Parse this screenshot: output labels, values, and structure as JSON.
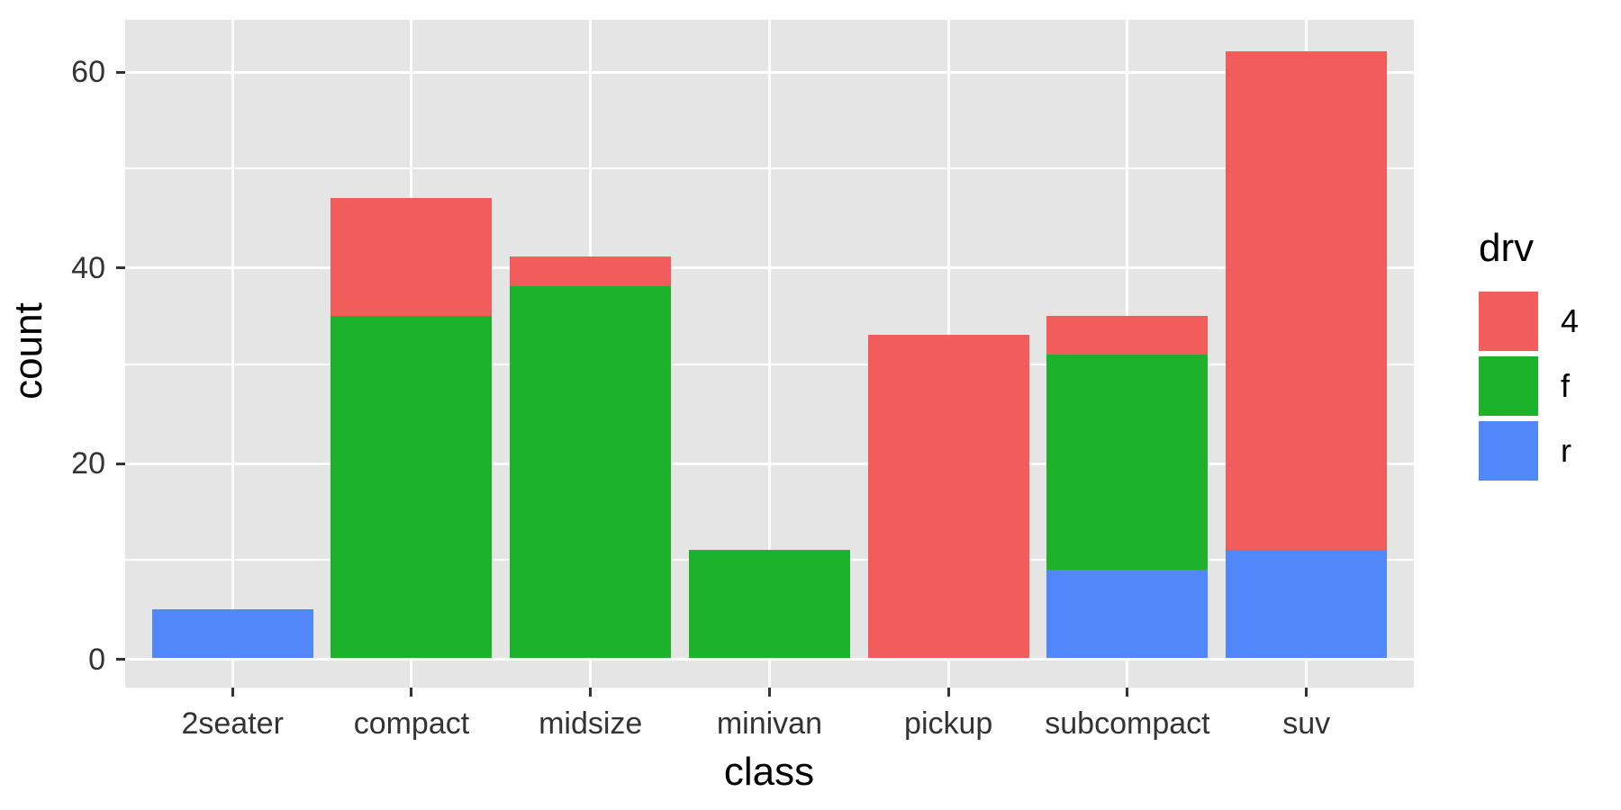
{
  "figure": {
    "background": "#FFFFFF",
    "panel_background": "#E5E5E5",
    "grid_color": "#FFFFFF",
    "tick_color": "#333333",
    "axis_text_color": "#333333",
    "title_color": "#000000"
  },
  "chart_data": {
    "type": "bar",
    "stacked": true,
    "title": "",
    "xlabel": "class",
    "ylabel": "count",
    "categories": [
      "2seater",
      "compact",
      "midsize",
      "minivan",
      "pickup",
      "subcompact",
      "suv"
    ],
    "series": [
      {
        "name": "4",
        "color": "#F25D5C",
        "values": [
          0,
          12,
          3,
          0,
          33,
          4,
          51
        ]
      },
      {
        "name": "f",
        "color": "#1CB22C",
        "values": [
          0,
          35,
          38,
          11,
          0,
          22,
          0
        ]
      },
      {
        "name": "r",
        "color": "#5287FA",
        "values": [
          5,
          0,
          0,
          0,
          0,
          9,
          11
        ]
      }
    ],
    "totals": [
      5,
      47,
      41,
      11,
      33,
      35,
      62
    ],
    "stack_order_bottom_to_top": [
      "r",
      "f",
      "4"
    ],
    "legend_title": "drv",
    "legend_order": [
      "4",
      "f",
      "r"
    ],
    "legend_position": "right",
    "ylim": [
      0,
      62
    ],
    "y_ticks": [
      0,
      20,
      40,
      60
    ],
    "y_tick_labels": [
      "0",
      "20",
      "40",
      "60"
    ],
    "y_minor_ticks": [
      10,
      30,
      50
    ],
    "grid": true,
    "panel_y_range_shown": [
      -3.05,
      65.25
    ]
  }
}
